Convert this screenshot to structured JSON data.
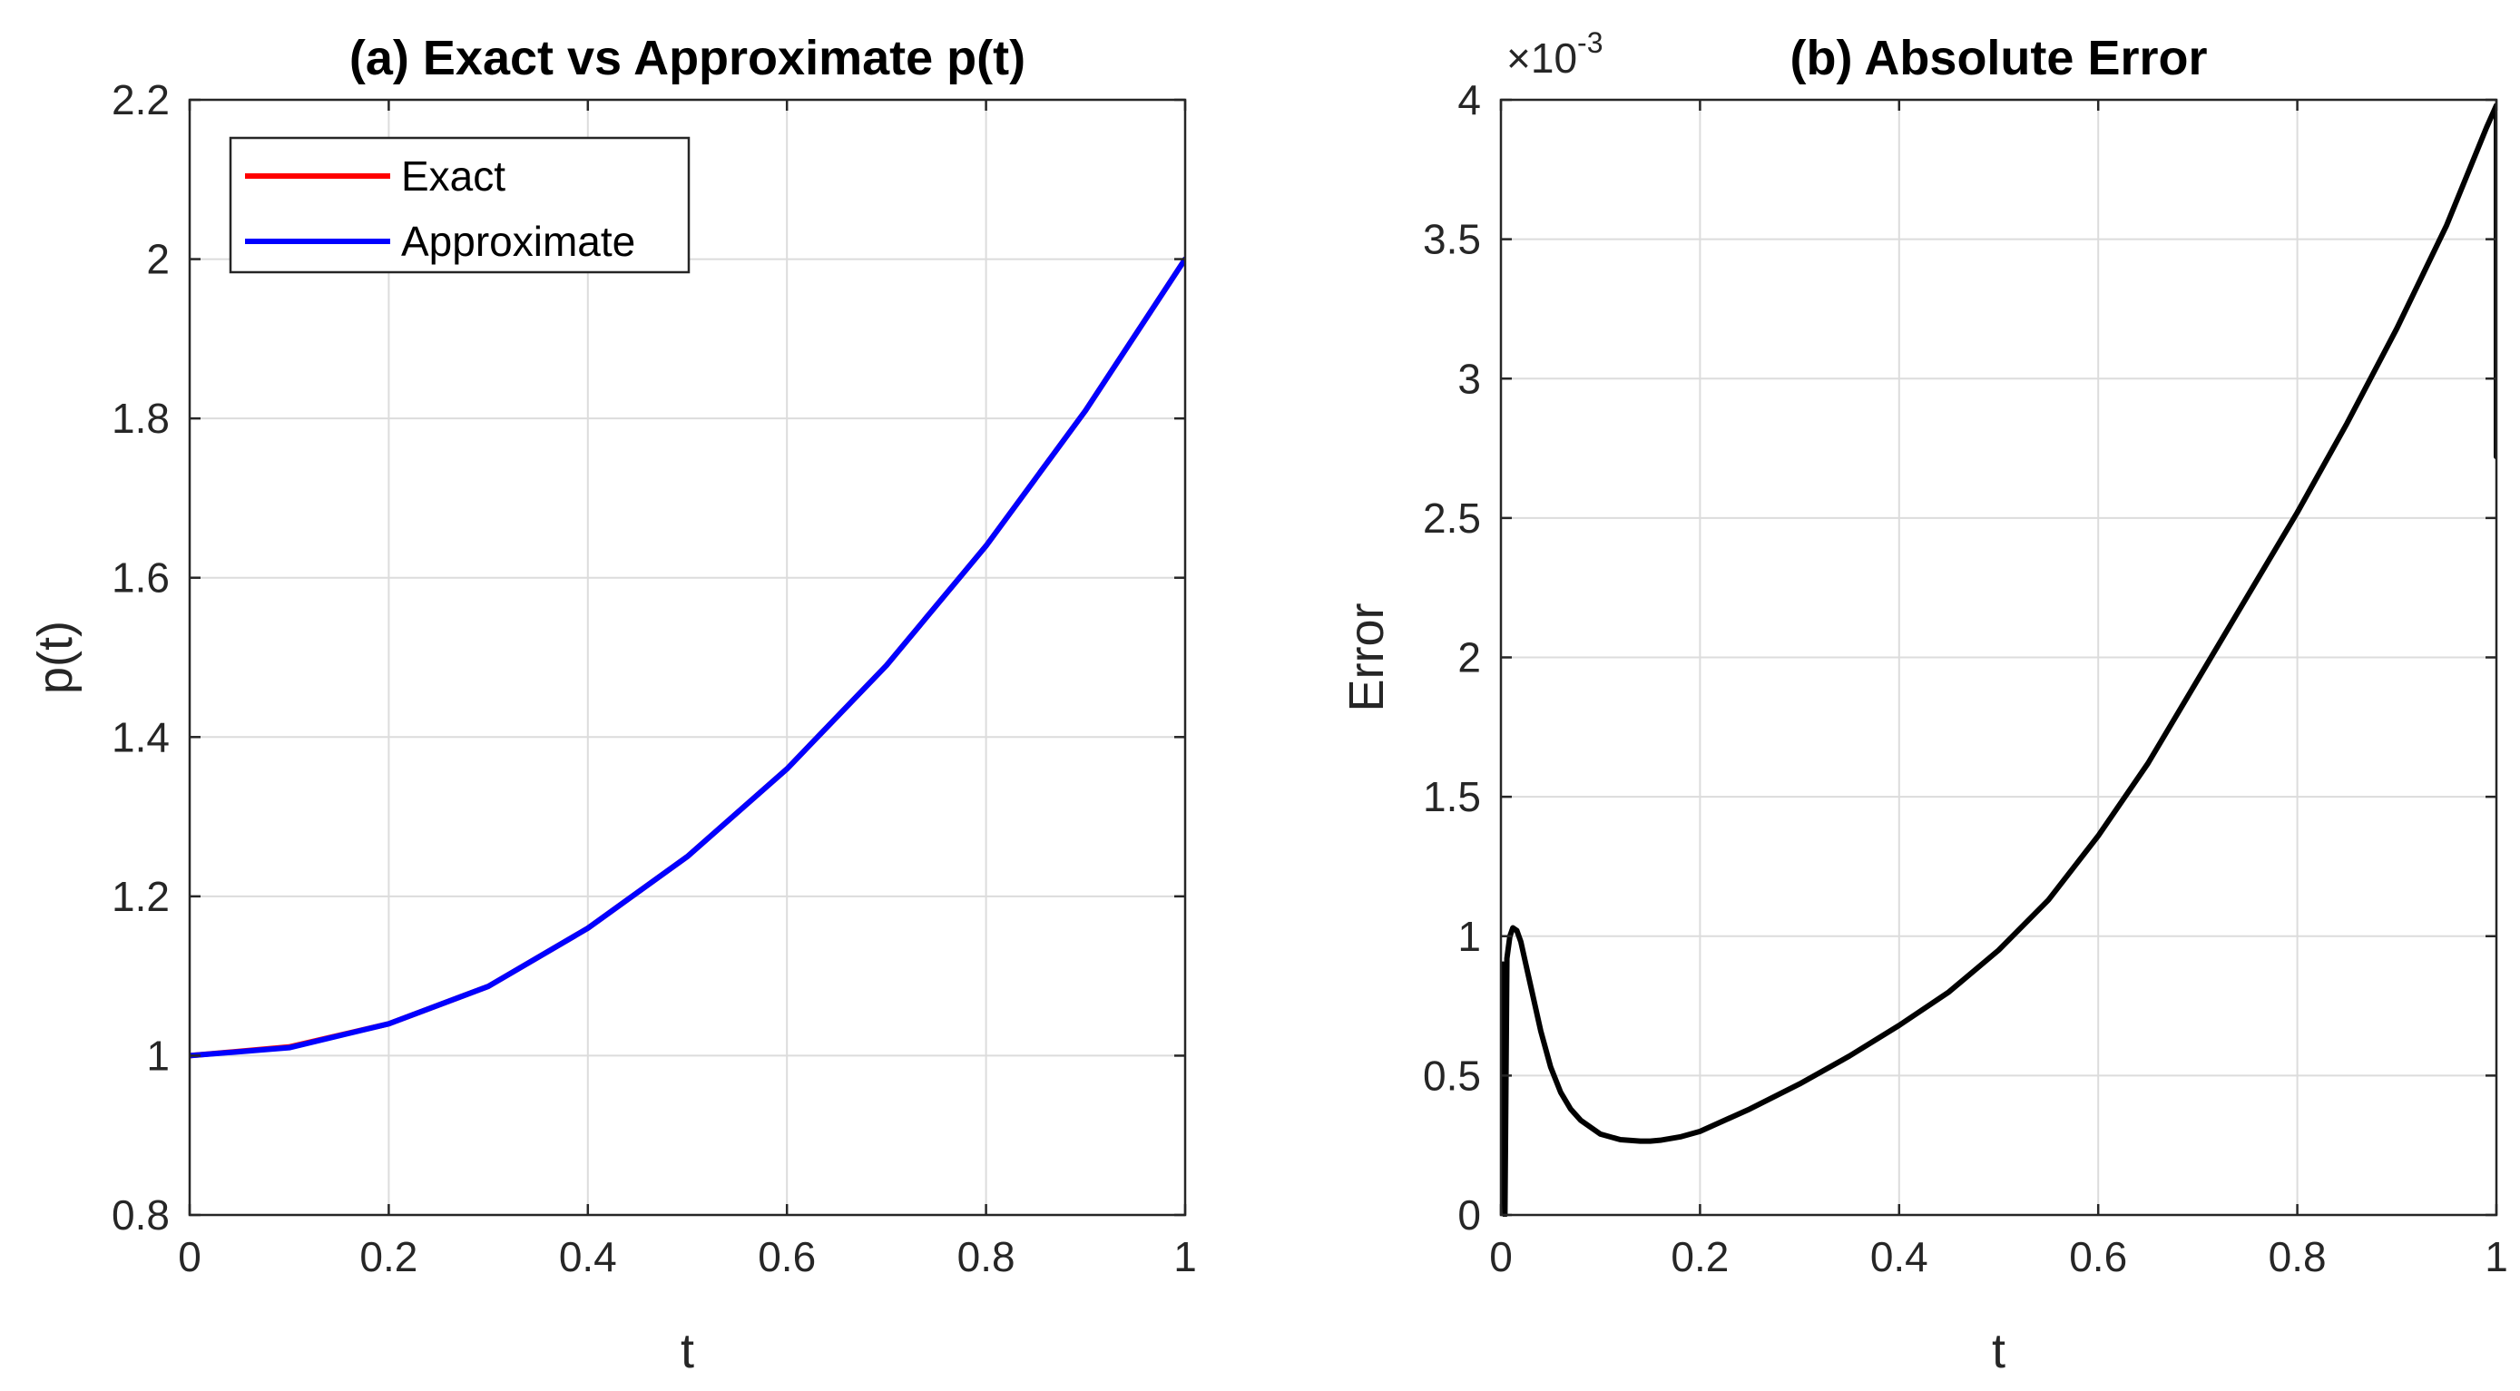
{
  "chart_data": [
    {
      "type": "line",
      "title": "(a) Exact vs Approximate p(t)",
      "xlabel": "t",
      "ylabel": "p(t)",
      "xlim": [
        0,
        1
      ],
      "ylim": [
        0.8,
        2.2
      ],
      "xticks": [
        "0",
        "0.2",
        "0.4",
        "0.6",
        "0.8",
        "1"
      ],
      "yticks": [
        "0.8",
        "1",
        "1.2",
        "1.4",
        "1.6",
        "1.8",
        "2",
        "2.2"
      ],
      "grid": true,
      "legend": {
        "position": "top-left",
        "entries": [
          {
            "name": "Exact",
            "color": "#ff0000"
          },
          {
            "name": "Approximate",
            "color": "#0000ff"
          }
        ]
      },
      "series": [
        {
          "name": "Exact",
          "color": "#ff0000",
          "x": [
            0,
            0.1,
            0.2,
            0.3,
            0.4,
            0.5,
            0.6,
            0.7,
            0.8,
            0.9,
            1.0
          ],
          "y": [
            1.0,
            1.011,
            1.04,
            1.087,
            1.16,
            1.25,
            1.36,
            1.49,
            1.64,
            1.81,
            2.0
          ]
        },
        {
          "name": "Approximate",
          "color": "#0000ff",
          "x": [
            0,
            0.1,
            0.2,
            0.3,
            0.4,
            0.5,
            0.6,
            0.7,
            0.8,
            0.9,
            1.0
          ],
          "y": [
            1.0,
            1.01,
            1.04,
            1.087,
            1.16,
            1.25,
            1.36,
            1.49,
            1.64,
            1.81,
            2.0
          ]
        }
      ]
    },
    {
      "type": "line",
      "title": "(b) Absolute Error",
      "xlabel": "t",
      "ylabel": "Error",
      "xlim": [
        0,
        1
      ],
      "ylim": [
        0,
        4
      ],
      "y_scale_label": "×10",
      "y_scale_exponent": "-3",
      "xticks": [
        "0",
        "0.2",
        "0.4",
        "0.6",
        "0.8",
        "1"
      ],
      "yticks": [
        "0",
        "0.5",
        "1",
        "1.5",
        "2",
        "2.5",
        "3",
        "3.5",
        "4"
      ],
      "grid": true,
      "series": [
        {
          "name": "Error",
          "color": "#000000",
          "x": [
            0,
            0.002,
            0.003,
            0.004,
            0.006,
            0.009,
            0.012,
            0.016,
            0.02,
            0.025,
            0.03,
            0.04,
            0.05,
            0.06,
            0.07,
            0.08,
            0.1,
            0.12,
            0.14,
            0.15,
            0.16,
            0.18,
            0.2,
            0.25,
            0.3,
            0.35,
            0.4,
            0.45,
            0.5,
            0.55,
            0.6,
            0.65,
            0.7,
            0.75,
            0.8,
            0.85,
            0.9,
            0.95,
            0.99,
            1.0,
            1.0
          ],
          "y": [
            0.18,
            0.9,
            0.1,
            0.0,
            0.92,
            1.0,
            1.03,
            1.02,
            0.98,
            0.9,
            0.82,
            0.66,
            0.53,
            0.44,
            0.38,
            0.34,
            0.29,
            0.27,
            0.265,
            0.265,
            0.268,
            0.28,
            0.3,
            0.38,
            0.47,
            0.57,
            0.68,
            0.8,
            0.95,
            1.13,
            1.36,
            1.62,
            1.92,
            2.22,
            2.52,
            2.84,
            3.18,
            3.55,
            3.9,
            3.98,
            2.72
          ]
        }
      ]
    }
  ]
}
